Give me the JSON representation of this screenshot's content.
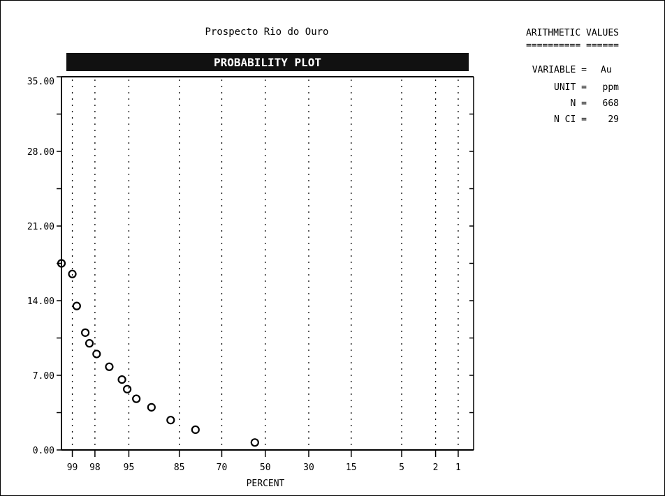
{
  "chart_data": {
    "type": "scatter",
    "title": "PROBABILITY PLOT",
    "subtitle": "Prospecto Rio do Ouro",
    "xlabel": "PERCENT",
    "ylabel": "",
    "x_scale": "probability",
    "xlim": [
      99.3,
      0.6
    ],
    "ylim": [
      0,
      35
    ],
    "y_ticks": [
      "0.00",
      "7.00",
      "14.00",
      "21.00",
      "28.00",
      "35.00"
    ],
    "x_ticks": [
      "99",
      "98",
      "95",
      "85",
      "70",
      "50",
      "30",
      "15",
      "5",
      "2",
      "1"
    ],
    "grid": true,
    "points": [
      {
        "x": 99.3,
        "y": 17.5
      },
      {
        "x": 99.0,
        "y": 16.5
      },
      {
        "x": 98.85,
        "y": 13.5
      },
      {
        "x": 98.5,
        "y": 11.0
      },
      {
        "x": 98.3,
        "y": 10.0
      },
      {
        "x": 97.9,
        "y": 9.0
      },
      {
        "x": 97.0,
        "y": 7.8
      },
      {
        "x": 95.8,
        "y": 6.6
      },
      {
        "x": 95.2,
        "y": 5.7
      },
      {
        "x": 94.0,
        "y": 4.8
      },
      {
        "x": 91.5,
        "y": 4.0
      },
      {
        "x": 87.3,
        "y": 2.8
      },
      {
        "x": 80.0,
        "y": 1.9
      },
      {
        "x": 55.0,
        "y": 0.7
      }
    ]
  },
  "panel": {
    "heading": "ARITHMETIC VALUES",
    "underline": "========== ======",
    "rows": [
      {
        "label": "VARIABLE =",
        "value": "Au"
      },
      {
        "label": "UNIT =",
        "value": "ppm"
      },
      {
        "label": "N =",
        "value": "668"
      },
      {
        "label": "N CI =",
        "value": "29"
      }
    ]
  },
  "colors": {
    "ink": "#000000",
    "banner": "#111111",
    "background": "#ffffff"
  }
}
